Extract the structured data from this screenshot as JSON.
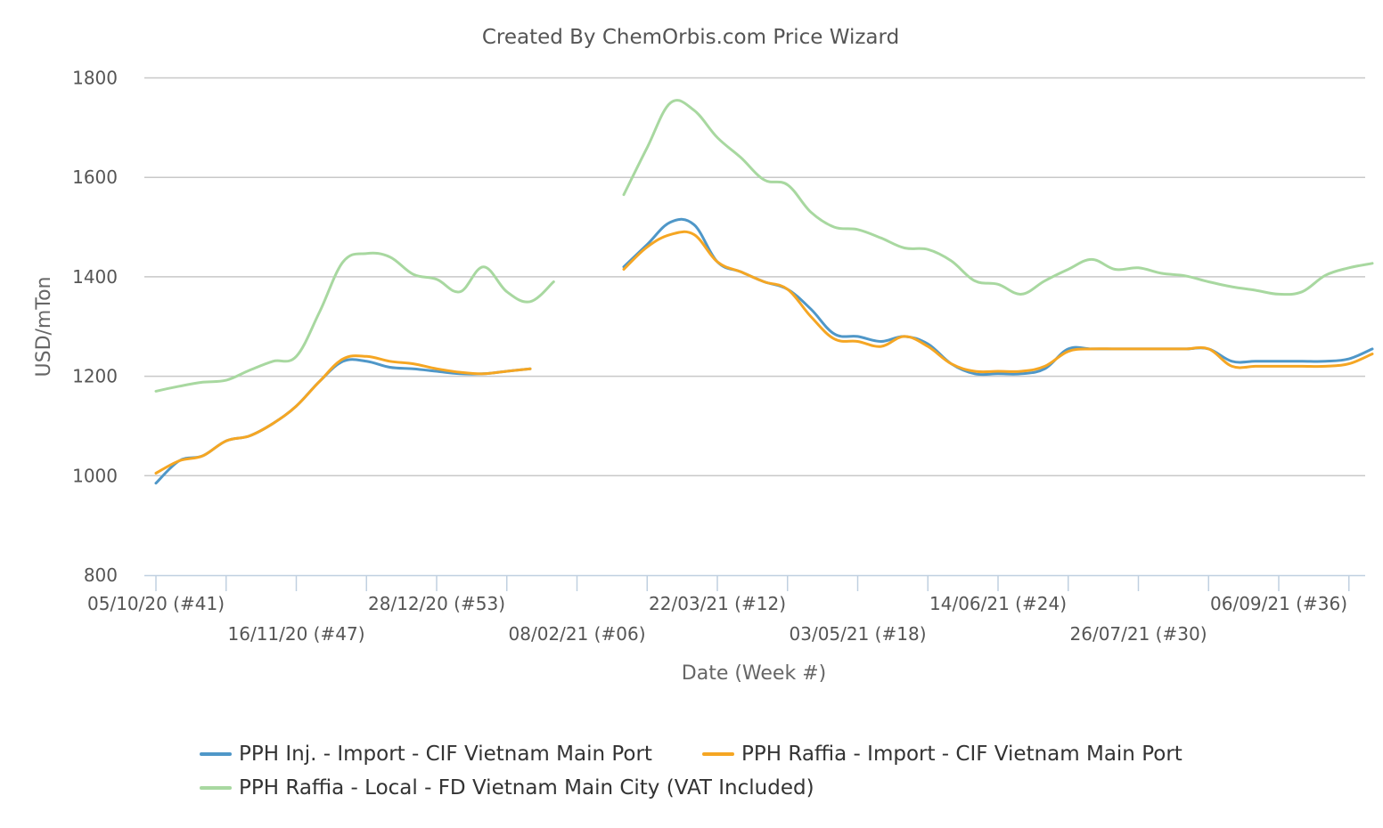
{
  "chart_data": {
    "type": "line",
    "title": "Created By ChemOrbis.com Price Wizard",
    "xlabel": "Date (Week #)",
    "ylabel": "USD/mTon",
    "ylim": [
      800,
      1800
    ],
    "yticks": [
      "800",
      "1000",
      "1200",
      "1400",
      "1600",
      "1800"
    ],
    "grid": true,
    "legend_position": "bottom",
    "x_ticks": [
      {
        "week": 0,
        "label": "05/10/20 (#41)"
      },
      {
        "week": 6,
        "label": "16/11/20 (#47)"
      },
      {
        "week": 12,
        "label": "28/12/20 (#53)"
      },
      {
        "week": 18,
        "label": "08/02/21 (#06)"
      },
      {
        "week": 24,
        "label": "22/03/21 (#12)"
      },
      {
        "week": 30,
        "label": "03/05/21 (#18)"
      },
      {
        "week": 36,
        "label": "14/06/21 (#24)"
      },
      {
        "week": 42,
        "label": "26/07/21 (#30)"
      },
      {
        "week": 48,
        "label": "06/09/21 (#36)"
      }
    ],
    "series": [
      {
        "name": "PPH Inj. - Import - CIF Vietnam Main Port",
        "color": "#4f97c8",
        "points": [
          [
            0,
            985
          ],
          [
            1,
            1030
          ],
          [
            2,
            1040
          ],
          [
            3,
            1070
          ],
          [
            4,
            1080
          ],
          [
            5,
            1105
          ],
          [
            6,
            1140
          ],
          [
            7,
            1190
          ],
          [
            8,
            1230
          ],
          [
            9,
            1230
          ],
          [
            10,
            1218
          ],
          [
            11,
            1215
          ],
          [
            12,
            1210
          ],
          [
            13,
            1205
          ],
          [
            14,
            1205
          ],
          [
            15,
            1210
          ],
          [
            16,
            1215
          ],
          null,
          [
            20,
            1420
          ],
          [
            21,
            1465
          ],
          [
            22,
            1510
          ],
          [
            23,
            1505
          ],
          [
            24,
            1430
          ],
          [
            25,
            1410
          ],
          [
            26,
            1390
          ],
          [
            27,
            1375
          ],
          [
            28,
            1335
          ],
          [
            29,
            1285
          ],
          [
            30,
            1280
          ],
          [
            31,
            1270
          ],
          [
            32,
            1280
          ],
          [
            33,
            1265
          ],
          [
            34,
            1225
          ],
          [
            35,
            1205
          ],
          [
            36,
            1205
          ],
          [
            37,
            1205
          ],
          [
            38,
            1215
          ],
          [
            39,
            1255
          ],
          [
            40,
            1255
          ],
          [
            41,
            1255
          ],
          [
            42,
            1255
          ],
          [
            43,
            1255
          ],
          [
            44,
            1255
          ],
          [
            45,
            1255
          ],
          [
            46,
            1230
          ],
          [
            47,
            1230
          ],
          [
            48,
            1230
          ],
          [
            49,
            1230
          ],
          [
            50,
            1230
          ],
          [
            51,
            1235
          ],
          [
            52,
            1255
          ]
        ]
      },
      {
        "name": "PPH Raffia - Import - CIF Vietnam Main Port",
        "color": "#f5a623",
        "points": [
          [
            0,
            1005
          ],
          [
            1,
            1030
          ],
          [
            2,
            1040
          ],
          [
            3,
            1070
          ],
          [
            4,
            1080
          ],
          [
            5,
            1105
          ],
          [
            6,
            1140
          ],
          [
            7,
            1190
          ],
          [
            8,
            1235
          ],
          [
            9,
            1240
          ],
          [
            10,
            1230
          ],
          [
            11,
            1225
          ],
          [
            12,
            1215
          ],
          [
            13,
            1208
          ],
          [
            14,
            1205
          ],
          [
            15,
            1210
          ],
          [
            16,
            1215
          ],
          null,
          [
            20,
            1415
          ],
          [
            21,
            1460
          ],
          [
            22,
            1485
          ],
          [
            23,
            1485
          ],
          [
            24,
            1430
          ],
          [
            25,
            1410
          ],
          [
            26,
            1390
          ],
          [
            27,
            1375
          ],
          [
            28,
            1320
          ],
          [
            29,
            1275
          ],
          [
            30,
            1270
          ],
          [
            31,
            1260
          ],
          [
            32,
            1280
          ],
          [
            33,
            1260
          ],
          [
            34,
            1225
          ],
          [
            35,
            1210
          ],
          [
            36,
            1210
          ],
          [
            37,
            1210
          ],
          [
            38,
            1220
          ],
          [
            39,
            1250
          ],
          [
            40,
            1255
          ],
          [
            41,
            1255
          ],
          [
            42,
            1255
          ],
          [
            43,
            1255
          ],
          [
            44,
            1255
          ],
          [
            45,
            1255
          ],
          [
            46,
            1220
          ],
          [
            47,
            1220
          ],
          [
            48,
            1220
          ],
          [
            49,
            1220
          ],
          [
            50,
            1220
          ],
          [
            51,
            1225
          ],
          [
            52,
            1245
          ]
        ]
      },
      {
        "name": "PPH Raffia - Local - FD Vietnam Main City (VAT Included)",
        "color": "#a8d8a0",
        "points": [
          [
            0,
            1170
          ],
          [
            1,
            1180
          ],
          [
            2,
            1188
          ],
          [
            3,
            1192
          ],
          [
            4,
            1212
          ],
          [
            5,
            1230
          ],
          [
            6,
            1240
          ],
          [
            7,
            1330
          ],
          [
            8,
            1430
          ],
          [
            9,
            1447
          ],
          [
            10,
            1440
          ],
          [
            11,
            1405
          ],
          [
            12,
            1395
          ],
          [
            13,
            1370
          ],
          [
            14,
            1420
          ],
          [
            15,
            1370
          ],
          [
            16,
            1350
          ],
          [
            17,
            1390
          ],
          null,
          [
            20,
            1565
          ],
          [
            21,
            1660
          ],
          [
            22,
            1750
          ],
          [
            23,
            1735
          ],
          [
            24,
            1680
          ],
          [
            25,
            1640
          ],
          [
            26,
            1595
          ],
          [
            27,
            1585
          ],
          [
            28,
            1530
          ],
          [
            29,
            1500
          ],
          [
            30,
            1495
          ],
          [
            31,
            1478
          ],
          [
            32,
            1458
          ],
          [
            33,
            1455
          ],
          [
            34,
            1432
          ],
          [
            35,
            1392
          ],
          [
            36,
            1385
          ],
          [
            37,
            1365
          ],
          [
            38,
            1392
          ],
          [
            39,
            1415
          ],
          [
            40,
            1435
          ],
          [
            41,
            1415
          ],
          [
            42,
            1418
          ],
          [
            43,
            1407
          ],
          [
            44,
            1402
          ],
          [
            45,
            1390
          ],
          [
            46,
            1380
          ],
          [
            47,
            1373
          ],
          [
            48,
            1365
          ],
          [
            49,
            1370
          ],
          [
            50,
            1403
          ],
          [
            51,
            1418
          ],
          [
            52,
            1427
          ]
        ]
      }
    ]
  }
}
